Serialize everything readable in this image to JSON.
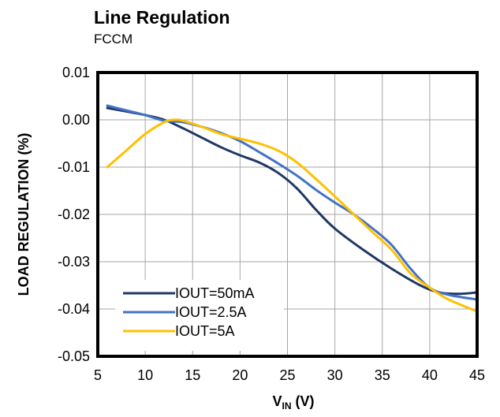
{
  "chart_data": {
    "type": "line",
    "title": "Line Regulation",
    "subtitle": "FCCM",
    "xlabel_main": "V",
    "xlabel_sub": "IN",
    "xlabel_unit": " (V)",
    "ylabel": "LOAD REGULATION  (%)",
    "xlim": [
      5,
      45
    ],
    "ylim": [
      -0.05,
      0.01
    ],
    "x_ticks": [
      5,
      10,
      15,
      20,
      25,
      30,
      35,
      40,
      45
    ],
    "x_tick_labels": [
      "5",
      "10",
      "15",
      "20",
      "25",
      "30",
      "35",
      "40",
      "45"
    ],
    "y_ticks": [
      0.01,
      0.0,
      -0.01,
      -0.02,
      -0.03,
      -0.04,
      -0.05
    ],
    "y_tick_labels": [
      "0.01",
      "0.00",
      "-0.01",
      "-0.02",
      "-0.03",
      "-0.04",
      "-0.05"
    ],
    "grid": true,
    "legend_position": "bottom-left",
    "series": [
      {
        "name": "IOUT=50mA",
        "color": "#1f3864",
        "x": [
          6,
          10,
          12,
          14,
          16,
          18,
          20,
          22,
          24,
          26,
          28,
          30,
          33,
          36,
          39,
          41,
          43,
          45
        ],
        "y": [
          0.0025,
          0.001,
          0.0,
          -0.0018,
          -0.0038,
          -0.0058,
          -0.0075,
          -0.009,
          -0.0112,
          -0.0145,
          -0.019,
          -0.023,
          -0.0275,
          -0.0315,
          -0.035,
          -0.0365,
          -0.0368,
          -0.0365
        ]
      },
      {
        "name": "IOUT=2.5A",
        "color": "#4472c4",
        "x": [
          6,
          8,
          10,
          12,
          14,
          16,
          18,
          20,
          22,
          24,
          26,
          28,
          30,
          32,
          34,
          36,
          38,
          40,
          42,
          45
        ],
        "y": [
          0.003,
          0.002,
          0.001,
          -0.0002,
          -0.0005,
          -0.0015,
          -0.0028,
          -0.0045,
          -0.0068,
          -0.0092,
          -0.0118,
          -0.0148,
          -0.0175,
          -0.02,
          -0.023,
          -0.0265,
          -0.0315,
          -0.0355,
          -0.037,
          -0.038
        ]
      },
      {
        "name": "IOUT=5A",
        "color": "#ffc000",
        "x": [
          6,
          8,
          10,
          12,
          13,
          14,
          16,
          18,
          20,
          22,
          24,
          26,
          28,
          30,
          32,
          34,
          36,
          38,
          40,
          42,
          45
        ],
        "y": [
          -0.01,
          -0.0065,
          -0.003,
          -0.0005,
          0.0,
          -0.0002,
          -0.0015,
          -0.003,
          -0.004,
          -0.005,
          -0.0065,
          -0.009,
          -0.0125,
          -0.0162,
          -0.02,
          -0.0238,
          -0.0275,
          -0.0325,
          -0.0355,
          -0.038,
          -0.0405
        ]
      }
    ]
  }
}
